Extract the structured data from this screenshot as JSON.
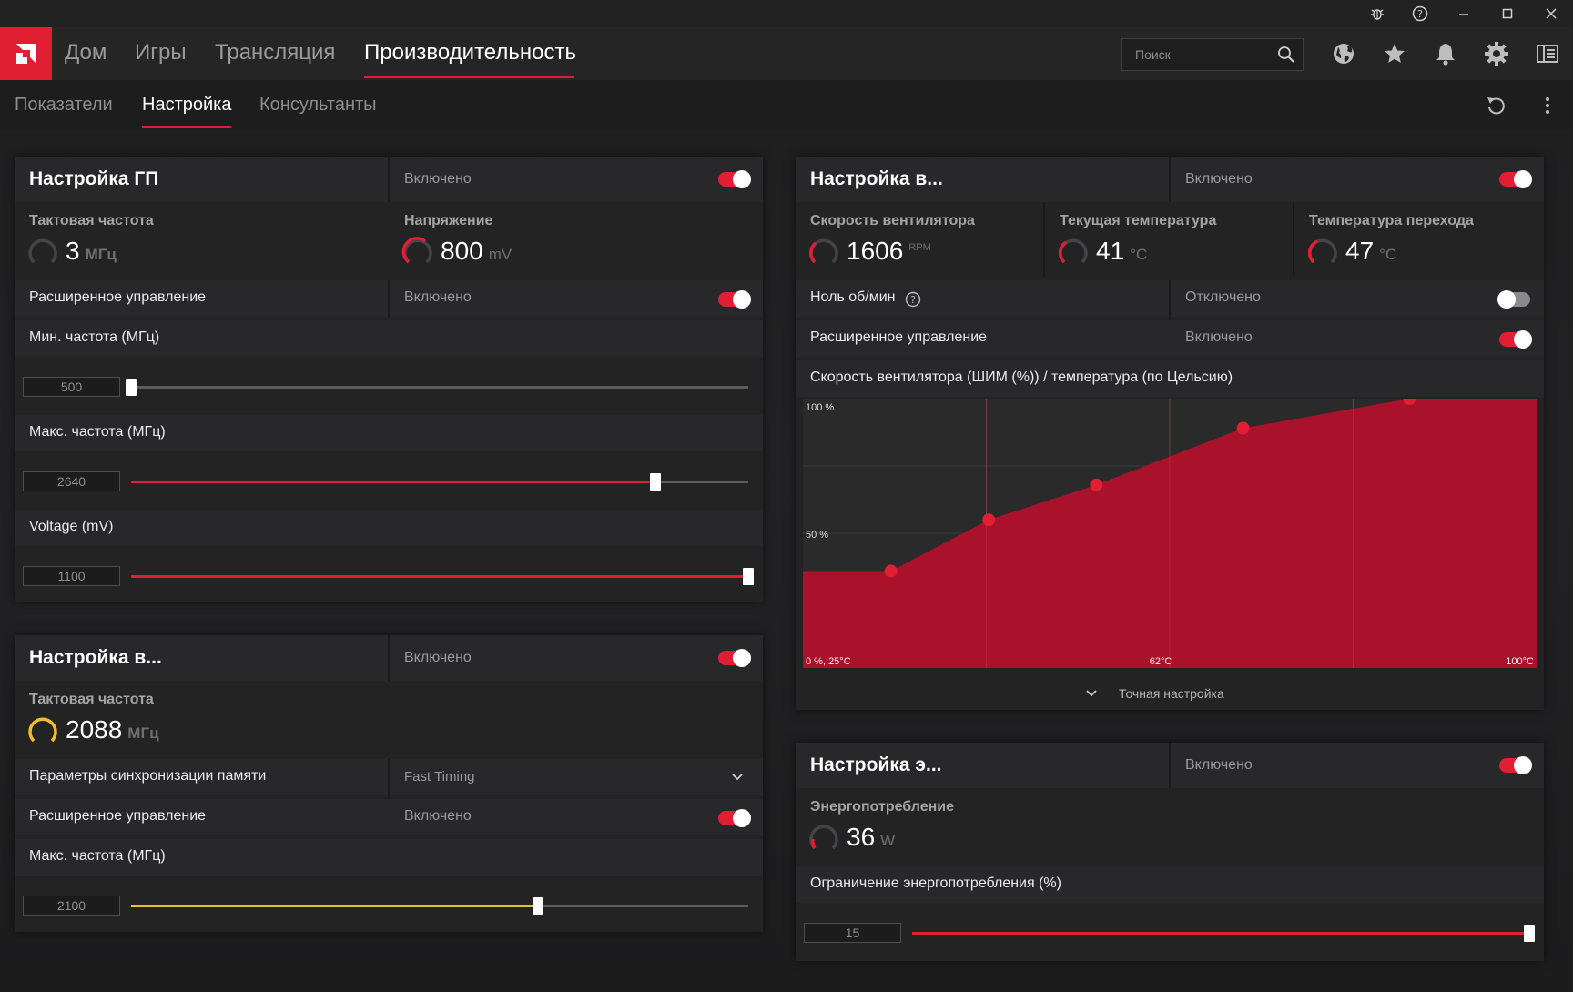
{
  "colors": {
    "accent": "#e01e34",
    "yellow": "#f1bd2c",
    "panel": "#232324",
    "text": "#ffffff",
    "muted": "#9a9a9a"
  },
  "window_controls": [
    "bug-icon",
    "help-icon",
    "minimize-icon",
    "maximize-icon",
    "close-icon"
  ],
  "nav": {
    "tabs": [
      {
        "label": "Дом",
        "active": false
      },
      {
        "label": "Игры",
        "active": false
      },
      {
        "label": "Трансляция",
        "active": false
      },
      {
        "label": "Производительность",
        "active": true
      }
    ],
    "search_placeholder": "Поиск",
    "right_icons": [
      "globe-icon",
      "star-icon",
      "bell-icon",
      "gear-icon",
      "sidebar-icon"
    ]
  },
  "subnav": {
    "tabs": [
      {
        "label": "Показатели",
        "active": false
      },
      {
        "label": "Настройка",
        "active": true
      },
      {
        "label": "Консультанты",
        "active": false
      }
    ],
    "right_icons": [
      "reset-icon",
      "more-vertical-icon"
    ]
  },
  "gpu": {
    "title": "Настройка ГП",
    "status": "Включено",
    "enabled": true,
    "clock": {
      "title": "Тактовая частота",
      "value": "3",
      "unit": "МГц"
    },
    "voltage": {
      "title": "Напряжение",
      "value": "800",
      "unit": "mV"
    },
    "advanced": {
      "label": "Расширенное управление",
      "status": "Включено",
      "enabled": true
    },
    "min_freq": {
      "label": "Мин. частота (МГц)",
      "value": "500",
      "fraction": 0.0
    },
    "max_freq": {
      "label": "Макс. частота (МГц)",
      "value": "2640",
      "fraction": 0.85
    },
    "voltage_slider": {
      "label": "Voltage (mV)",
      "value": "1100",
      "fraction": 1.0
    }
  },
  "vram": {
    "title": "Настройка в...",
    "status": "Включено",
    "enabled": true,
    "clock": {
      "title": "Тактовая частота",
      "value": "2088",
      "unit": "МГц"
    },
    "timing": {
      "label": "Параметры синхронизации памяти",
      "value": "Fast Timing"
    },
    "advanced": {
      "label": "Расширенное управление",
      "status": "Включено",
      "enabled": true
    },
    "max_freq": {
      "label": "Макс. частота (МГц)",
      "value": "2100",
      "fraction": 0.66
    }
  },
  "fan": {
    "title": "Настройка в...",
    "status": "Включено",
    "enabled": true,
    "speed": {
      "title": "Скорость вентилятора",
      "value": "1606",
      "unit": "RPM"
    },
    "temp": {
      "title": "Текущая температура",
      "value": "41",
      "unit": "°C"
    },
    "junction": {
      "title": "Температура перехода",
      "value": "47",
      "unit": "°C"
    },
    "zero_rpm": {
      "label": "Ноль об/мин",
      "status": "Отключено",
      "enabled": false
    },
    "advanced": {
      "label": "Расширенное управление",
      "status": "Включено",
      "enabled": true
    },
    "curve_title": "Скорость вентилятора (ШИМ (%)) / температура (по Цельсию)",
    "fine_tune": "Точная настройка"
  },
  "power": {
    "title": "Настройка э...",
    "status": "Включено",
    "enabled": true,
    "consumption": {
      "title": "Энергопотребление",
      "value": "36",
      "unit": "W"
    },
    "limit": {
      "label": "Ограничение энергопотребления (%)",
      "value": "15",
      "fraction": 1.0
    }
  },
  "chart_data": {
    "type": "area",
    "title": "Скорость вентилятора (ШИМ (%)) / температура (по Цельсию)",
    "xlim": [
      25,
      100
    ],
    "ylim": [
      0,
      100
    ],
    "x_tick_labels": [
      "0 %, 25°C",
      "62°C",
      "100°C"
    ],
    "y_tick_labels": [
      "100 %",
      "50 %"
    ],
    "grid": true,
    "series": [
      {
        "x": [
          34,
          44,
          55,
          70,
          87
        ],
        "y": [
          36,
          55,
          68,
          89,
          100
        ]
      }
    ]
  }
}
